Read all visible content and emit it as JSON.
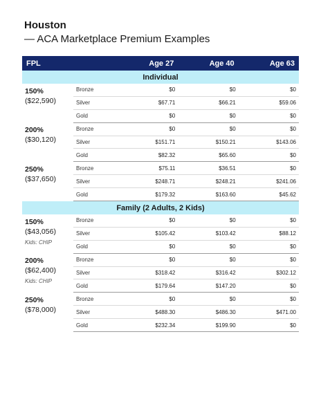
{
  "title": {
    "city": "Houston",
    "subtitle": "— ACA Marketplace Premium Examples"
  },
  "table": {
    "headers": {
      "fpl": "FPL",
      "ages": [
        "Age 27",
        "Age 40",
        "Age 63"
      ]
    },
    "sections": [
      {
        "label": "Individual",
        "groups": [
          {
            "fpl": "150%",
            "income": "($22,590)",
            "note": "",
            "rows": [
              {
                "metal": "Bronze",
                "values": [
                  "$0",
                  "$0",
                  "$0"
                ]
              },
              {
                "metal": "Silver",
                "values": [
                  "$67.71",
                  "$66.21",
                  "$59.06"
                ]
              },
              {
                "metal": "Gold",
                "values": [
                  "$0",
                  "$0",
                  "$0"
                ]
              }
            ]
          },
          {
            "fpl": "200%",
            "income": "($30,120)",
            "note": "",
            "rows": [
              {
                "metal": "Bronze",
                "values": [
                  "$0",
                  "$0",
                  "$0"
                ]
              },
              {
                "metal": "Silver",
                "values": [
                  "$151.71",
                  "$150.21",
                  "$143.06"
                ]
              },
              {
                "metal": "Gold",
                "values": [
                  "$82.32",
                  "$65.60",
                  "$0"
                ]
              }
            ]
          },
          {
            "fpl": "250%",
            "income": "($37,650)",
            "note": "",
            "rows": [
              {
                "metal": "Bronze",
                "values": [
                  "$75.11",
                  "$36.51",
                  "$0"
                ]
              },
              {
                "metal": "Silver",
                "values": [
                  "$248.71",
                  "$248.21",
                  "$241.06"
                ]
              },
              {
                "metal": "Gold",
                "values": [
                  "$179.32",
                  "$163.60",
                  "$45.62"
                ]
              }
            ]
          }
        ]
      },
      {
        "label": "Family (2 Adults, 2 Kids)",
        "groups": [
          {
            "fpl": "150%",
            "income": "($43,056)",
            "note": "Kids: CHIP",
            "rows": [
              {
                "metal": "Bronze",
                "values": [
                  "$0",
                  "$0",
                  "$0"
                ]
              },
              {
                "metal": "Silver",
                "values": [
                  "$105.42",
                  "$103.42",
                  "$88.12"
                ]
              },
              {
                "metal": "Gold",
                "values": [
                  "$0",
                  "$0",
                  "$0"
                ]
              }
            ]
          },
          {
            "fpl": "200%",
            "income": "($62,400)",
            "note": "Kids: CHIP",
            "rows": [
              {
                "metal": "Bronze",
                "values": [
                  "$0",
                  "$0",
                  "$0"
                ]
              },
              {
                "metal": "Silver",
                "values": [
                  "$318.42",
                  "$316.42",
                  "$302.12"
                ]
              },
              {
                "metal": "Gold",
                "values": [
                  "$179.64",
                  "$147.20",
                  "$0"
                ]
              }
            ]
          },
          {
            "fpl": "250%",
            "income": "($78,000)",
            "note": "",
            "rows": [
              {
                "metal": "Bronze",
                "values": [
                  "$0",
                  "$0",
                  "$0"
                ]
              },
              {
                "metal": "Silver",
                "values": [
                  "$488.30",
                  "$486.30",
                  "$471.00"
                ]
              },
              {
                "metal": "Gold",
                "values": [
                  "$232.34",
                  "$199.90",
                  "$0"
                ]
              }
            ]
          }
        ]
      }
    ]
  }
}
